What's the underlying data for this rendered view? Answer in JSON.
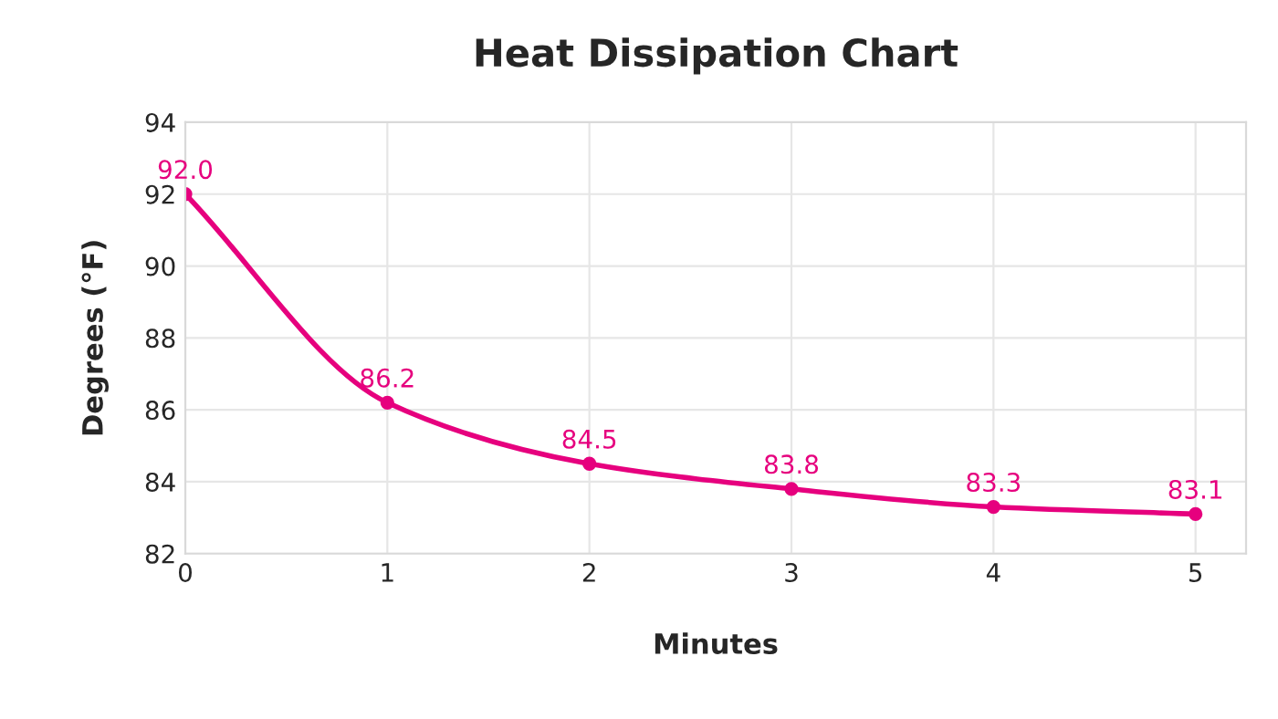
{
  "chart_data": {
    "type": "line",
    "title": "Heat Dissipation Chart",
    "xlabel": "Minutes",
    "ylabel": "Degrees (°F)",
    "x": [
      0,
      1,
      2,
      3,
      4,
      5
    ],
    "series": [
      {
        "color": "#e6007e",
        "values": [
          92.0,
          86.2,
          84.5,
          83.8,
          83.3,
          83.1
        ],
        "value_labels": [
          "92.0",
          "86.2",
          "84.5",
          "83.8",
          "83.3",
          "83.1"
        ]
      }
    ],
    "xlim": [
      0,
      5.25
    ],
    "xticks": [
      0,
      1,
      2,
      3,
      4,
      5
    ],
    "ylim": [
      82,
      94
    ],
    "yticks": [
      82,
      84,
      86,
      88,
      90,
      92,
      94
    ],
    "grid": true,
    "marker": "circle",
    "line_style": "solid",
    "legend": false
  }
}
